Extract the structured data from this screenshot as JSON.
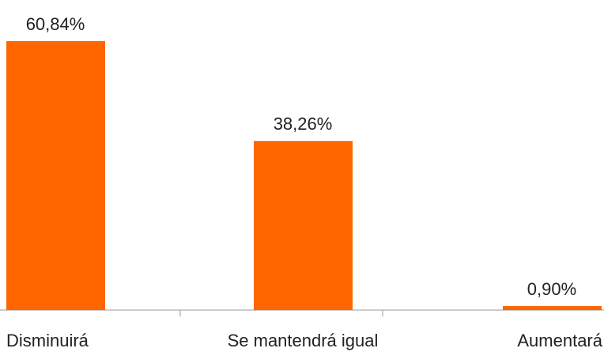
{
  "chart_data": {
    "type": "bar",
    "categories": [
      "Disminuirá",
      "Se mantendrá igual",
      "Aumentará"
    ],
    "values": [
      60.84,
      38.26,
      0.9
    ],
    "value_labels": [
      "60,84%",
      "38,26%",
      "0,90%"
    ],
    "color": "#ff6600"
  }
}
